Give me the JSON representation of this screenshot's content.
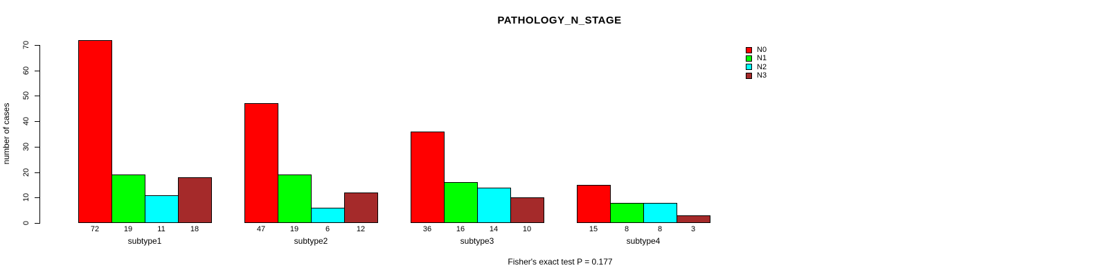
{
  "title": "PATHOLOGY_N_STAGE",
  "chart_data": {
    "type": "bar",
    "title": "PATHOLOGY_N_STAGE",
    "categories": [
      "subtype1",
      "subtype2",
      "subtype3",
      "subtype4"
    ],
    "series": [
      {
        "name": "N0",
        "color": "#ff0000",
        "values": [
          72,
          47,
          36,
          15
        ]
      },
      {
        "name": "N1",
        "color": "#00ff00",
        "values": [
          19,
          19,
          16,
          8
        ]
      },
      {
        "name": "N2",
        "color": "#00ffff",
        "values": [
          11,
          6,
          14,
          8
        ]
      },
      {
        "name": "N3",
        "color": "#a52a2a",
        "values": [
          18,
          12,
          10,
          3
        ]
      }
    ],
    "ylabel": "number of cases",
    "ylim": [
      0,
      70
    ],
    "yticks": [
      0,
      10,
      20,
      30,
      40,
      50,
      60,
      70
    ],
    "bar_value_labels": true,
    "grid": false,
    "legend_position": "top-right",
    "annotation": "Fisher's exact test P = 0.177"
  }
}
